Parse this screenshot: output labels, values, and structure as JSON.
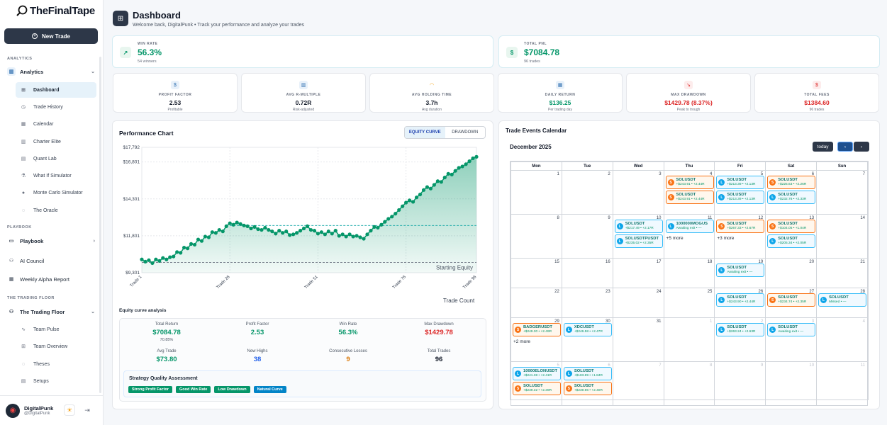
{
  "app": {
    "name": "TheFinalTape",
    "new_trade": "New Trade"
  },
  "sidebar": {
    "sections": [
      "ANALYTICS",
      "PLAYBOOK",
      "THE TRADING FLOOR"
    ],
    "groups": {
      "analytics": "Analytics",
      "playbook": "Playbook",
      "floor": "The Trading Floor"
    },
    "analytics_items": [
      "Dashboard",
      "Trade History",
      "Calendar",
      "Charter Elite",
      "Quant Lab",
      "What If Simulator",
      "Monte Carlo Simulator",
      "The Oracle"
    ],
    "standalone": [
      "AI Council",
      "Weekly Alpha Report"
    ],
    "floor_items": [
      "Team Pulse",
      "Team Overview",
      "Theses",
      "Setups"
    ]
  },
  "user": {
    "name": "DigitalPunk",
    "handle": "@DigitalPunk"
  },
  "header": {
    "title": "Dashboard",
    "subtitle": "Welcome back, DigitalPunk • Track your performance and analyze your trades"
  },
  "kpis": {
    "win_rate": {
      "label": "WIN RATE",
      "value": "56.3%",
      "sub": "54 winners"
    },
    "total_pnl": {
      "label": "TOTAL PNL",
      "value": "$7084.78",
      "sub": "96 trades"
    }
  },
  "metrics": [
    {
      "label": "PROFIT FACTOR",
      "value": "2.53",
      "sub": "Profitable",
      "icon": "$",
      "color": "#111827",
      "bg": "#e8f1fa",
      "ic": "#2f6fb0"
    },
    {
      "label": "AVG R-MULTIPLE",
      "value": "0.72R",
      "sub": "Risk-adjusted",
      "icon": "▥",
      "color": "#111827",
      "bg": "#e8f1fa",
      "ic": "#2f6fb0"
    },
    {
      "label": "AVG HOLDING TIME",
      "value": "3.7h",
      "sub": "Avg duration",
      "icon": "◠",
      "color": "#111827",
      "bg": "#fff",
      "ic": "#f59e0b"
    },
    {
      "label": "DAILY RETURN",
      "value": "$136.25",
      "sub": "Per trading day",
      "icon": "▦",
      "color": "#059669",
      "bg": "#e8f1fa",
      "ic": "#2f6fb0"
    },
    {
      "label": "MAX DRAWDOWN",
      "value": "$1429.78 (8.37%)",
      "sub": "Peak to trough",
      "icon": "↘",
      "color": "#dc2626",
      "bg": "#fdecec",
      "ic": "#dc2626"
    },
    {
      "label": "TOTAL FEES",
      "value": "$1384.60",
      "sub": "96 trades",
      "icon": "$",
      "color": "#dc2626",
      "bg": "#fdecec",
      "ic": "#dc2626"
    }
  ],
  "performance": {
    "title": "Performance Chart",
    "tabs": [
      "EQUITY CURVE",
      "DRAWDOWN"
    ],
    "starting_label": "Starting Equity",
    "xlabel": "Trade Count"
  },
  "chart_data": {
    "type": "area",
    "title": "",
    "xlabel": "Trade Count",
    "ylabel": "",
    "yticks": [
      9301,
      11801,
      14301,
      16801,
      17792
    ],
    "ytick_labels": [
      "$9,301",
      "$11,801",
      "$14,301",
      "$16,801",
      "$17,792"
    ],
    "ylim": [
      9301,
      17792
    ],
    "xticks": [
      1,
      26,
      51,
      76,
      96
    ],
    "xtick_labels": [
      "Trade 1",
      "Trade 26",
      "Trade 51",
      "Trade 76",
      "Trade 96"
    ],
    "reference_lines": [
      {
        "label": "Starting Equity",
        "value": 10000
      },
      {
        "label": "",
        "value": 12500
      }
    ],
    "grid": true,
    "series": [
      {
        "name": "",
        "x": [
          1,
          2,
          3,
          4,
          5,
          6,
          7,
          8,
          9,
          10,
          11,
          12,
          13,
          14,
          15,
          16,
          17,
          18,
          19,
          20,
          21,
          22,
          23,
          24,
          25,
          26,
          27,
          28,
          29,
          30,
          31,
          32,
          33,
          34,
          35,
          36,
          37,
          38,
          39,
          40,
          41,
          42,
          43,
          44,
          45,
          46,
          47,
          48,
          49,
          50,
          51,
          52,
          53,
          54,
          55,
          56,
          57,
          58,
          59,
          60,
          61,
          62,
          63,
          64,
          65,
          66,
          67,
          68,
          69,
          70,
          71,
          72,
          73,
          74,
          75,
          76,
          77,
          78,
          79,
          80,
          81,
          82,
          83,
          84,
          85,
          86,
          87,
          88,
          89,
          90,
          91,
          92,
          93,
          94,
          95,
          96
        ],
        "y": [
          10200,
          10050,
          10150,
          9950,
          10200,
          10100,
          10300,
          10200,
          10350,
          10400,
          10700,
          10650,
          11000,
          10950,
          11250,
          11200,
          11550,
          11450,
          11750,
          11700,
          12050,
          12000,
          12200,
          12100,
          12450,
          12650,
          12550,
          12700,
          12600,
          12500,
          12450,
          12300,
          12400,
          12250,
          12200,
          12350,
          12200,
          12100,
          11950,
          12150,
          12000,
          12100,
          11850,
          11900,
          12000,
          12150,
          12300,
          12450,
          12200,
          12150,
          11950,
          12050,
          11900,
          12100,
          11950,
          12150,
          11800,
          11900,
          11750,
          11900,
          11750,
          11800,
          11700,
          11600,
          11900,
          12150,
          12400,
          12350,
          12550,
          12750,
          12950,
          13100,
          13300,
          13550,
          13800,
          14050,
          14200,
          14100,
          14400,
          14600,
          14900,
          15100,
          15000,
          15250,
          15500,
          15450,
          15750,
          16000,
          15950,
          16200,
          16400,
          16500,
          16650,
          16850,
          17050,
          17150
        ]
      }
    ]
  },
  "analysis": {
    "title": "Equity curve analysis",
    "stats": [
      {
        "label": "Total Return",
        "value": "$7084.78",
        "sub": "70.85%",
        "color": "#059669"
      },
      {
        "label": "Profit Factor",
        "value": "2.53",
        "sub": "",
        "color": "#059669"
      },
      {
        "label": "Win Rate",
        "value": "56.3%",
        "sub": "",
        "color": "#059669"
      },
      {
        "label": "Max Drawdown",
        "value": "$1429.78",
        "sub": "",
        "color": "#dc2626"
      },
      {
        "label": "Avg Trade",
        "value": "$73.80",
        "sub": "",
        "color": "#059669"
      },
      {
        "label": "New Highs",
        "value": "38",
        "sub": "",
        "color": "#2563eb"
      },
      {
        "label": "Consecutive Losses",
        "value": "9",
        "sub": "",
        "color": "#d97706"
      },
      {
        "label": "Total Trades",
        "value": "96",
        "sub": "",
        "color": "#111827"
      }
    ],
    "quality_title": "Strategy Quality Assessment",
    "badges": [
      {
        "t": "Strong Profit Factor",
        "c": "#059669"
      },
      {
        "t": "Good Win Rate",
        "c": "#059669"
      },
      {
        "t": "Low Drawdown",
        "c": "#059669"
      },
      {
        "t": "Natural Curve",
        "c": "#0284c7"
      }
    ]
  },
  "calendar": {
    "title": "Trade Events Calendar",
    "month": "December 2025",
    "today": "today",
    "days": [
      "Mon",
      "Tue",
      "Wed",
      "Thu",
      "Fri",
      "Sat",
      "Sun"
    ],
    "weeks": [
      [
        {
          "n": "",
          "d": false
        },
        {
          "n": "1"
        },
        {
          "n": "2"
        },
        {
          "n": "3"
        },
        {
          "n": "4"
        },
        {
          "n": "5"
        },
        {
          "n": "6"
        },
        {
          "n": "7"
        }
      ],
      [
        {
          "n": "8"
        },
        {
          "n": "9"
        },
        {
          "n": "10"
        },
        {
          "n": "11"
        },
        {
          "n": "12"
        },
        {
          "n": "13"
        },
        {
          "n": "14"
        }
      ],
      [
        {
          "n": "15"
        },
        {
          "n": "16"
        },
        {
          "n": "17"
        },
        {
          "n": "18"
        },
        {
          "n": "19"
        },
        {
          "n": "20"
        },
        {
          "n": "21"
        }
      ],
      [
        {
          "n": "22"
        },
        {
          "n": "23"
        },
        {
          "n": "24"
        },
        {
          "n": "25"
        },
        {
          "n": "26"
        },
        {
          "n": "27"
        },
        {
          "n": "28"
        }
      ],
      [
        {
          "n": "29"
        },
        {
          "n": "30"
        },
        {
          "n": "31"
        },
        {
          "n": "1",
          "d": true
        },
        {
          "n": "2",
          "d": true
        },
        {
          "n": "3",
          "d": true
        },
        {
          "n": "4",
          "d": true
        }
      ],
      [
        {
          "n": "5",
          "d": true
        },
        {
          "n": "6",
          "d": true
        },
        {
          "n": "7",
          "d": true
        },
        {
          "n": "8",
          "d": true
        },
        {
          "n": "9",
          "d": true
        },
        {
          "n": "10",
          "d": true
        },
        {
          "n": "11",
          "d": true
        }
      ]
    ],
    "events": [
      {
        "r": 0,
        "c": 3,
        "s": 0,
        "t": "SOLUSDT",
        "d": "+$243.91 • +2.44R",
        "o": true
      },
      {
        "r": 0,
        "c": 3,
        "s": 1,
        "t": "SOLUSDT",
        "d": "+$243.91 • +2.44R",
        "o": true
      },
      {
        "r": 0,
        "c": 4,
        "s": 0,
        "t": "SOLUSDT",
        "d": "+$213.39 • +2.13R",
        "o": false
      },
      {
        "r": 0,
        "c": 4,
        "s": 1,
        "t": "SOLUSDT",
        "d": "+$213.39 • +2.13R",
        "o": false
      },
      {
        "r": 0,
        "c": 5,
        "s": 0,
        "t": "SOLUSDT",
        "d": "+$225.63 • +2.26R",
        "o": true
      },
      {
        "r": 0,
        "c": 5,
        "s": 1,
        "t": "SOLUSDT",
        "d": "+$232.76 • +2.33R",
        "o": false
      },
      {
        "r": 1,
        "c": 2,
        "s": 0,
        "t": "SOLUSDT",
        "d": "+$217.49 • +2.17R",
        "o": false
      },
      {
        "r": 1,
        "c": 2,
        "s": 1,
        "t": "SOLUSDTPUSDT",
        "d": "+$235.02 • +2.35R",
        "o": false
      },
      {
        "r": 1,
        "c": 3,
        "s": 0,
        "t": "1000000MOGUS",
        "d": "Awaiting exit • —",
        "o": false
      },
      {
        "r": 1,
        "c": 4,
        "s": 0,
        "t": "SOLUSDT",
        "d": "+$267.33 • +2.67R",
        "o": true
      },
      {
        "r": 1,
        "c": 5,
        "s": 0,
        "t": "SOLUSDT",
        "d": "+$104.05 • +1.04R",
        "o": true
      },
      {
        "r": 1,
        "c": 5,
        "s": 1,
        "t": "SOLUSDT",
        "d": "+$205.34 • +2.05R",
        "o": false
      },
      {
        "r": 2,
        "c": 4,
        "s": 0,
        "t": "SOLUSDT",
        "d": "Awaiting exit • —",
        "o": false
      },
      {
        "r": 3,
        "c": 4,
        "s": 0,
        "t": "SOLUSDT",
        "d": "+$243.90 • +2.44R",
        "o": false
      },
      {
        "r": 3,
        "c": 5,
        "s": 0,
        "t": "SOLUSDT",
        "d": "+$234.74 • +2.35R",
        "o": true
      },
      {
        "r": 3,
        "c": 6,
        "s": 0,
        "t": "SOLUSDT",
        "d": "Missed • —",
        "o": false
      },
      {
        "r": 4,
        "c": 0,
        "s": 0,
        "t": "BADGERUSDT",
        "d": "+$249.30 • +2.49R",
        "o": true
      },
      {
        "r": 4,
        "c": 1,
        "s": 0,
        "t": "XDCUSDT",
        "d": "+$246.58 • +2.47R",
        "o": false
      },
      {
        "r": 4,
        "c": 4,
        "s": 0,
        "t": "SOLUSDT",
        "d": "+$263.24 • +2.63R",
        "o": false
      },
      {
        "r": 4,
        "c": 5,
        "s": 0,
        "t": "SOLUSDT",
        "d": "Awaiting exit • —",
        "o": false
      },
      {
        "r": 5,
        "c": 0,
        "s": 0,
        "t": "10000ELONUSDT",
        "d": "+$241.38 • +2.41R",
        "o": false
      },
      {
        "r": 5,
        "c": 0,
        "s": 1,
        "t": "SOLUSDT",
        "d": "+$239.32 • +2.39R",
        "o": true
      },
      {
        "r": 5,
        "c": 1,
        "s": 0,
        "t": "SOLUSDT",
        "d": "+$183.89 • +1.84R",
        "o": false
      },
      {
        "r": 5,
        "c": 1,
        "s": 1,
        "t": "SOLUSDT",
        "d": "+$239.96 • +2.40R",
        "o": true
      }
    ],
    "more": [
      {
        "r": 1,
        "c": 3,
        "s": 1,
        "t": "+5 more"
      },
      {
        "r": 1,
        "c": 4,
        "s": 1,
        "t": "+3 more"
      },
      {
        "r": 4,
        "c": 0,
        "s": 1,
        "t": "+2 more"
      }
    ]
  }
}
